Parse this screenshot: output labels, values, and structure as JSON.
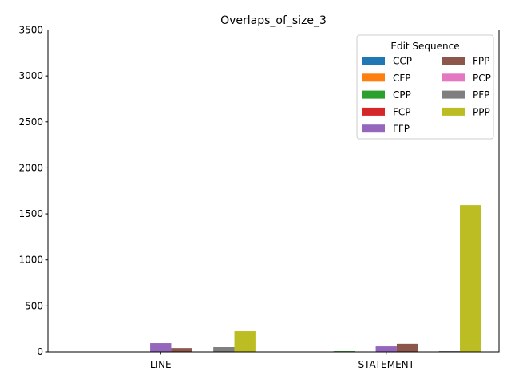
{
  "chart_data": {
    "type": "bar",
    "title": "Overlaps_of_size_3",
    "xlabel": "",
    "ylabel": "",
    "ylim": [
      0,
      3500
    ],
    "yticks": [
      0,
      500,
      1000,
      1500,
      2000,
      2500,
      3000,
      3500
    ],
    "grid": false,
    "categories": [
      "LINE",
      "STATEMENT"
    ],
    "legend": {
      "title": "Edit Sequence",
      "placement": "top-right",
      "columns": 2
    },
    "series": [
      {
        "name": "CCP",
        "color": "#1f77b4",
        "values": [
          0,
          0
        ]
      },
      {
        "name": "CFP",
        "color": "#ff7f0e",
        "values": [
          0,
          0
        ]
      },
      {
        "name": "CPP",
        "color": "#2ca02c",
        "values": [
          0,
          8
        ]
      },
      {
        "name": "FCP",
        "color": "#d62728",
        "values": [
          0,
          0
        ]
      },
      {
        "name": "FFP",
        "color": "#9467bd",
        "values": [
          95,
          60
        ]
      },
      {
        "name": "FPP",
        "color": "#8c564b",
        "values": [
          42,
          88
        ]
      },
      {
        "name": "PCP",
        "color": "#e377c2",
        "values": [
          0,
          0
        ]
      },
      {
        "name": "PFP",
        "color": "#7f7f7f",
        "values": [
          52,
          8
        ]
      },
      {
        "name": "PPP",
        "color": "#bcbd22",
        "values": [
          225,
          1595
        ]
      }
    ]
  }
}
